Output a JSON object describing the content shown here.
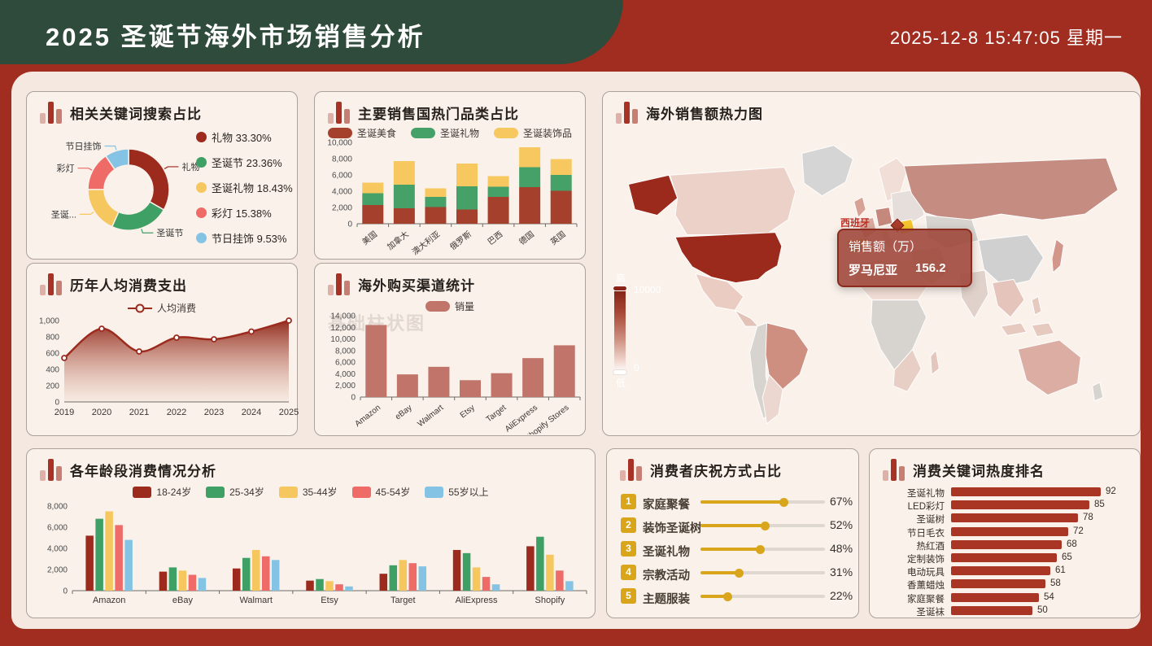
{
  "header": {
    "title": "2025 圣诞节海外市场销售分析",
    "datetime": "2025-12-8 15:47:05 星期一"
  },
  "palette": {
    "page_red": "#A12D20",
    "header_green": "#2F4B3C",
    "board_bg": "#F4E8E0",
    "panel_bg": "#F9F1EA",
    "series5": [
      "#9C2B1E",
      "#3FA065",
      "#F5C75E",
      "#EE6B68",
      "#85C3E4"
    ],
    "stacked3": [
      "#A5402C",
      "#46A168",
      "#F6C85F"
    ],
    "muted_bar": "#C0746A",
    "brick": "#A93524",
    "gold": "#D9A51B"
  },
  "chart_data": [
    {
      "type": "pie",
      "title": "相关关键词搜索占比",
      "labels": [
        "礼物",
        "圣诞节",
        "圣诞礼物",
        "彩灯",
        "节日挂饰"
      ],
      "callouts": [
        "礼物",
        "圣诞节",
        "圣诞...",
        "彩灯",
        "节日挂饰"
      ],
      "values": [
        33.3,
        23.36,
        18.43,
        15.38,
        9.53
      ],
      "legend_position": "right"
    },
    {
      "type": "bar",
      "subtype": "stacked",
      "title": "主要销售国热门品类占比",
      "categories": [
        "美国",
        "加拿大",
        "澳大利亚",
        "俄罗斯",
        "巴西",
        "德国",
        "英国"
      ],
      "series": [
        {
          "name": "圣诞美食",
          "values": [
            2300,
            1900,
            2050,
            1750,
            3300,
            4500,
            4050
          ]
        },
        {
          "name": "圣诞礼物",
          "values": [
            1450,
            2900,
            1250,
            2850,
            1250,
            2450,
            1950
          ]
        },
        {
          "name": "圣诞装饰品",
          "values": [
            1300,
            2900,
            1050,
            2800,
            1300,
            2450,
            1950
          ]
        }
      ],
      "ylim": [
        0,
        10000
      ],
      "ystep": 2000
    },
    {
      "type": "heatmap",
      "title": "海外销售额热力图",
      "visualmap": {
        "high_label": "高",
        "max": "10000",
        "min": "0",
        "low_label": "低"
      },
      "tooltip": {
        "title": "销售额（万）",
        "country": "罗马尼亚",
        "value": "156.2"
      },
      "map_label": "西班牙",
      "region_colors": {
        "greenland": "#D5D5D5",
        "alaska": "#9B2A1C",
        "canada": "#ECD1C8",
        "usa": "#9B2A1C",
        "mexico": "#EACCC2",
        "camerica": "#E3C2B8",
        "sa_west": "#D7D3CF",
        "brazil": "#CE8E80",
        "argentina": "#EBD7CF",
        "africa_north": "#F0DDD4",
        "africa_central": "#D7D3CF",
        "africa_south": "#E8CFC6",
        "madagascar": "#E4C6BC",
        "scandinavia": "#F1DED6",
        "uk": "#D8A195",
        "france": "#DBA99E",
        "spain": "#E2B94E",
        "germany": "#C4887C",
        "italy": "#ECD7CE",
        "easteurope": "#E6DEDA",
        "romania": "#F5C42C",
        "russia": "#C58D81",
        "centralasia": "#D7D3CF",
        "china": "#D0D0D0",
        "mideast": "#EAD5CB",
        "india": "#E0D1CA",
        "seasia": "#E5C5BB",
        "japan": "#D3968A",
        "philippines": "#E6C9BF",
        "indonesia1": "#E6C9BF",
        "indonesia2": "#E6C9BF",
        "australia": "#DCAEA3",
        "nz": "#D7D3CF"
      }
    },
    {
      "type": "line",
      "title": "历年人均消费支出",
      "legend": "人均消费",
      "x": [
        "2019",
        "2020",
        "2021",
        "2022",
        "2023",
        "2024",
        "2025"
      ],
      "values": [
        540,
        900,
        620,
        790,
        770,
        865,
        1000
      ],
      "ylim": [
        0,
        1000
      ],
      "ystep": 200,
      "area": true
    },
    {
      "type": "bar",
      "title": "海外购买渠道统计",
      "legend": "销量",
      "watermark": "基础柱状图",
      "categories": [
        "Amazon",
        "eBay",
        "Walmart",
        "Etsy",
        "Target",
        "AliExpress",
        "Shopify Stores"
      ],
      "values": [
        12400,
        3900,
        5200,
        2900,
        4100,
        6700,
        8900
      ],
      "ylim": [
        0,
        14000
      ],
      "ystep": 2000
    },
    {
      "type": "bar",
      "subtype": "grouped",
      "title": "各年龄段消费情况分析",
      "categories": [
        "Amazon",
        "eBay",
        "Walmart",
        "Etsy",
        "Target",
        "AliExpress",
        "Shopify"
      ],
      "series": [
        {
          "name": "18-24岁",
          "values": [
            5200,
            1800,
            2100,
            950,
            1600,
            3850,
            4200
          ]
        },
        {
          "name": "25-34岁",
          "values": [
            6800,
            2200,
            3100,
            1100,
            2400,
            3550,
            5100
          ]
        },
        {
          "name": "35-44岁",
          "values": [
            7500,
            1900,
            3850,
            900,
            2900,
            2200,
            3400
          ]
        },
        {
          "name": "45-54岁",
          "values": [
            6200,
            1500,
            3250,
            600,
            2600,
            1300,
            1900
          ]
        },
        {
          "name": "55岁以上",
          "values": [
            4800,
            1200,
            2900,
            400,
            2300,
            600,
            900
          ]
        }
      ],
      "ylim": [
        0,
        8000
      ],
      "ystep": 2000
    },
    {
      "type": "ranked-slider",
      "title": "消费者庆祝方式占比",
      "items": [
        {
          "rank": "1",
          "label": "家庭聚餐",
          "pct": 67
        },
        {
          "rank": "2",
          "label": "装饰圣诞树",
          "pct": 52
        },
        {
          "rank": "3",
          "label": "圣诞礼物",
          "pct": 48
        },
        {
          "rank": "4",
          "label": "宗教活动",
          "pct": 31
        },
        {
          "rank": "5",
          "label": "主题服装",
          "pct": 22
        }
      ]
    },
    {
      "type": "hbar",
      "title": "消费关键词热度排名",
      "items": [
        {
          "label": "圣诞礼物",
          "value": 92
        },
        {
          "label": "LED彩灯",
          "value": 85
        },
        {
          "label": "圣诞树",
          "value": 78
        },
        {
          "label": "节日毛衣",
          "value": 72
        },
        {
          "label": "热红酒",
          "value": 68
        },
        {
          "label": "定制装饰",
          "value": 65
        },
        {
          "label": "电动玩具",
          "value": 61
        },
        {
          "label": "香薰蜡烛",
          "value": 58
        },
        {
          "label": "家庭聚餐",
          "value": 54
        },
        {
          "label": "圣诞袜",
          "value": 50
        }
      ],
      "xmax": 100
    }
  ]
}
